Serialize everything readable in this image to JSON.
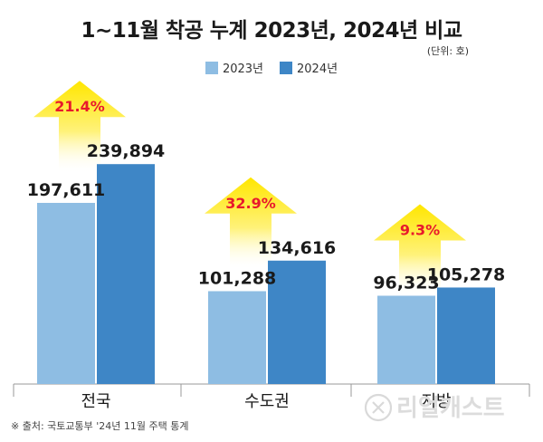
{
  "header": {
    "title": "1~11월 착공 누계 2023년, 2024년 비교",
    "unit": "(단위: 호)"
  },
  "footer": {
    "source": "※ 출처: 국토교통부 '24년 11월 주택 통계",
    "watermark": "리얼캐스트"
  },
  "chart_data": {
    "type": "bar",
    "title": "1~11월 착공 누계 2023년, 2024년 비교",
    "unit": "(단위: 호)",
    "categories": [
      "전국",
      "수도권",
      "지방"
    ],
    "series": [
      {
        "name": "2023년",
        "color": "#8ebde3",
        "values": [
          197611,
          101288,
          96323
        ],
        "labels": [
          "197,611",
          "101,288",
          "96,323"
        ]
      },
      {
        "name": "2024년",
        "color": "#3e86c6",
        "values": [
          239894,
          134616,
          105278
        ],
        "labels": [
          "239,894",
          "134,616",
          "105,278"
        ]
      }
    ],
    "growth_labels": [
      "21.4%",
      "32.9%",
      "9.3%"
    ],
    "ylim": [
      0,
      330000
    ],
    "legend_position": "top-center",
    "grid": false
  }
}
